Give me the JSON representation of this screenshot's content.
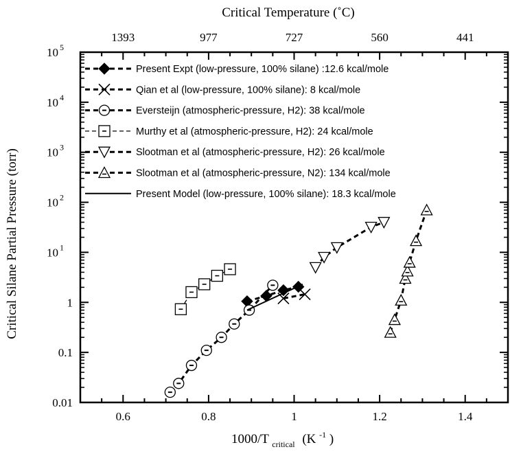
{
  "chart_data": {
    "type": "scatter",
    "x_axis": {
      "label_main": "1000/T",
      "label_sub": "critical",
      "label_unit_open": "(K",
      "label_unit_sup": "-1",
      "label_unit_close": ")",
      "range": [
        0.5,
        1.5
      ],
      "major_ticks": [
        0.6,
        0.8,
        1.0,
        1.2,
        1.4
      ],
      "tick_labels": [
        "0.6",
        "0.8",
        "1",
        "1.2",
        "1.4"
      ]
    },
    "top_axis": {
      "label": "Critical Temperature (˚C)",
      "tick_positions": [
        0.6,
        0.8,
        1.0,
        1.2,
        1.4
      ],
      "tick_labels": [
        "1393",
        "977",
        "727",
        "560",
        "441"
      ]
    },
    "y_axis": {
      "label": "Critical Silane Partial Pressure (torr)",
      "scale": "log",
      "range": [
        0.01,
        100000
      ],
      "major_ticks": [
        0.01,
        0.1,
        1,
        10,
        100,
        1000,
        10000,
        100000
      ],
      "tick_labels": [
        "0.01",
        "0.1",
        "1",
        "",
        "",
        "",
        "",
        ""
      ],
      "power_labels": [
        {
          "value": 10,
          "base": "10",
          "exp": "1"
        },
        {
          "value": 100,
          "base": "10",
          "exp": "2"
        },
        {
          "value": 1000,
          "base": "10",
          "exp": "3"
        },
        {
          "value": 10000,
          "base": "10",
          "exp": "4"
        },
        {
          "value": 100000,
          "base": "10",
          "exp": "5"
        }
      ]
    },
    "grid": false,
    "legend_position": "top-left",
    "series": [
      {
        "name": "Present Expt (low-pressure, 100% silane) :12.6 kcal/mole",
        "marker": "filled-diamond",
        "line": "bold-dashed",
        "x": [
          0.89,
          0.935,
          0.975,
          1.01
        ],
        "y": [
          1.05,
          1.35,
          1.75,
          2.05
        ]
      },
      {
        "name": "Qian et al (low-pressure, 100% silane): 8 kcal/mole",
        "marker": "x",
        "line": "bold-dashed",
        "x": [
          0.975,
          1.025
        ],
        "y": [
          1.2,
          1.45
        ]
      },
      {
        "name": "Eversteijn (atmospheric-pressure, H2): 38 kcal/mole",
        "marker": "circle-dot",
        "line": "bold-dashed",
        "x": [
          0.71,
          0.73,
          0.76,
          0.795,
          0.83,
          0.86,
          0.895,
          0.95
        ],
        "y": [
          0.016,
          0.024,
          0.055,
          0.11,
          0.2,
          0.37,
          0.7,
          2.2
        ]
      },
      {
        "name": "Murthy et al (atmospheric-pressure, H2): 24 kcal/mole",
        "marker": "square-dot",
        "line": "thin-dashed",
        "x": [
          0.735,
          0.76,
          0.79,
          0.82,
          0.85
        ],
        "y": [
          0.73,
          1.6,
          2.3,
          3.4,
          4.6
        ]
      },
      {
        "name": "Slootman et al (atmospheric-pressure, H2): 26 kcal/mole",
        "marker": "triangle-down",
        "line": "bold-dashed",
        "x": [
          1.05,
          1.07,
          1.1,
          1.18,
          1.21
        ],
        "y": [
          5.0,
          8.0,
          12.5,
          32.0,
          40.0
        ]
      },
      {
        "name": "Slootman et al (atmospheric-pressure, N2): 134 kcal/mole",
        "marker": "triangle-up-dot",
        "line": "bold-dashed",
        "x": [
          1.225,
          1.235,
          1.25,
          1.26,
          1.265,
          1.27,
          1.285,
          1.31
        ],
        "y": [
          0.25,
          0.45,
          1.1,
          3.0,
          4.2,
          6.3,
          17.0,
          70.0
        ]
      },
      {
        "name": "Present Model (low-pressure, 100% silane): 18.3 kcal/mole",
        "marker": "none",
        "line": "solid",
        "x": [
          0.89,
          1.02
        ],
        "y": [
          0.7,
          2.3
        ]
      }
    ]
  }
}
